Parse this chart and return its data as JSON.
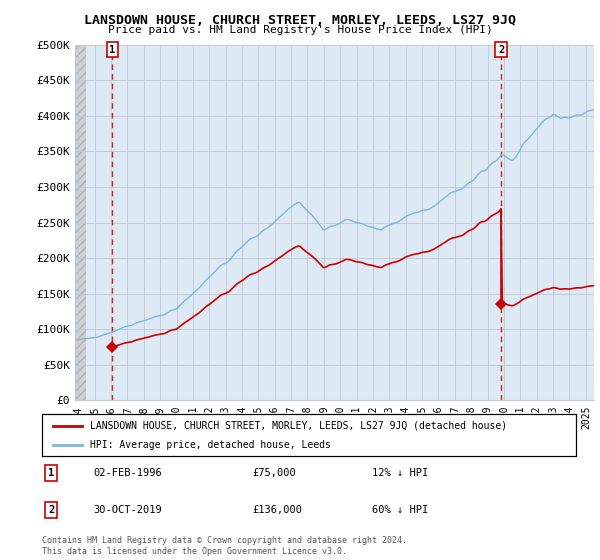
{
  "title": "LANSDOWN HOUSE, CHURCH STREET, MORLEY, LEEDS, LS27 9JQ",
  "subtitle": "Price paid vs. HM Land Registry's House Price Index (HPI)",
  "ylim": [
    0,
    500000
  ],
  "yticks": [
    0,
    50000,
    100000,
    150000,
    200000,
    250000,
    300000,
    350000,
    400000,
    450000,
    500000
  ],
  "ytick_labels": [
    "£0",
    "£50K",
    "£100K",
    "£150K",
    "£200K",
    "£250K",
    "£300K",
    "£350K",
    "£400K",
    "£450K",
    "£500K"
  ],
  "sale1_year": 1996.09,
  "sale1_price": 75000,
  "sale2_year": 2019.83,
  "sale2_price": 136000,
  "sale_color": "#cc0000",
  "hpi_line_color": "#7ab8d4",
  "legend_property_label": "LANSDOWN HOUSE, CHURCH STREET, MORLEY, LEEDS, LS27 9JQ (detached house)",
  "legend_hpi_label": "HPI: Average price, detached house, Leeds",
  "note1_date": "02-FEB-1996",
  "note1_price": "£75,000",
  "note1_hpi": "12% ↓ HPI",
  "note2_date": "30-OCT-2019",
  "note2_price": "£136,000",
  "note2_hpi": "60% ↓ HPI",
  "copyright": "Contains HM Land Registry data © Crown copyright and database right 2024.\nThis data is licensed under the Open Government Licence v3.0.",
  "bg_plot": "#ddeaf5",
  "grid_color": "#c0c8d0",
  "hatch_bg": "#d0d0d0"
}
